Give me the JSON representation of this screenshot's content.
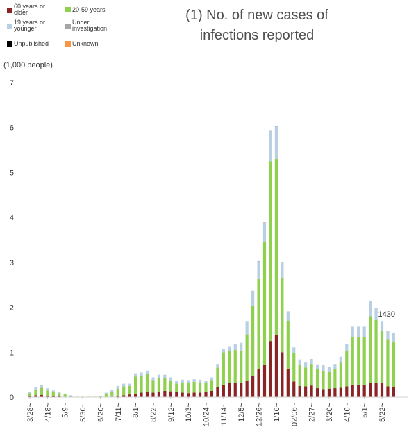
{
  "colors": {
    "older": "#8b2424",
    "adult": "#8fd14f",
    "young": "#b8cfe4",
    "investigation": "#a6a6a6",
    "unpublished": "#000000",
    "unknown": "#f79646"
  },
  "chart_data": {
    "type": "bar",
    "stacked": true,
    "title_lines": [
      "(1) No. of new cases of",
      "infections reported"
    ],
    "unit_label": "(1,000 people)",
    "legend": [
      {
        "key": "older",
        "lines": [
          "60 years or",
          "older"
        ]
      },
      {
        "key": "adult",
        "lines": [
          "20-59 years"
        ]
      },
      {
        "key": "young",
        "lines": [
          "19 years or",
          "younger"
        ]
      },
      {
        "key": "investigation",
        "lines": [
          "Under",
          "investigation"
        ]
      },
      {
        "key": "unpublished",
        "lines": [
          "Unpublished"
        ]
      },
      {
        "key": "unknown",
        "lines": [
          "Unknown"
        ]
      }
    ],
    "ylim": [
      0,
      7
    ],
    "yticks": [
      0,
      1,
      2,
      3,
      4,
      5,
      6,
      7
    ],
    "grid": false,
    "x_tick_labels": [
      {
        "index": 0,
        "label": "3/28~"
      },
      {
        "index": 3,
        "label": "4/18~"
      },
      {
        "index": 6,
        "label": "5/9~"
      },
      {
        "index": 9,
        "label": "5/30~"
      },
      {
        "index": 12,
        "label": "6/20~"
      },
      {
        "index": 15,
        "label": "7/11~"
      },
      {
        "index": 18,
        "label": "8/1~"
      },
      {
        "index": 21,
        "label": "8/22~"
      },
      {
        "index": 24,
        "label": "9/12~"
      },
      {
        "index": 27,
        "label": "10/3~"
      },
      {
        "index": 30,
        "label": "10/24~"
      },
      {
        "index": 33,
        "label": "11/14~"
      },
      {
        "index": 36,
        "label": "12/5~"
      },
      {
        "index": 39,
        "label": "12/26~"
      },
      {
        "index": 42,
        "label": "1/16~"
      },
      {
        "index": 45,
        "label": "02/06~"
      },
      {
        "index": 48,
        "label": "2/27~"
      },
      {
        "index": 51,
        "label": "3/20~"
      },
      {
        "index": 54,
        "label": "4/10~"
      },
      {
        "index": 57,
        "label": "5/1~"
      },
      {
        "index": 60,
        "label": "5/22~"
      }
    ],
    "series": [
      {
        "key": "older",
        "values": [
          0.02,
          0.04,
          0.05,
          0.03,
          0.02,
          0.02,
          0.01,
          0.01,
          0.0,
          0.0,
          0.0,
          0.0,
          0.0,
          0.01,
          0.01,
          0.02,
          0.04,
          0.06,
          0.08,
          0.1,
          0.12,
          0.1,
          0.12,
          0.14,
          0.13,
          0.11,
          0.1,
          0.09,
          0.1,
          0.1,
          0.11,
          0.14,
          0.22,
          0.28,
          0.31,
          0.32,
          0.31,
          0.36,
          0.48,
          0.62,
          0.72,
          1.25,
          1.38,
          1.0,
          0.62,
          0.35,
          0.25,
          0.24,
          0.26,
          0.2,
          0.18,
          0.19,
          0.2,
          0.21,
          0.24,
          0.28,
          0.28,
          0.28,
          0.32,
          0.32,
          0.31,
          0.24,
          0.22
        ]
      },
      {
        "key": "adult",
        "values": [
          0.07,
          0.13,
          0.16,
          0.12,
          0.09,
          0.07,
          0.05,
          0.02,
          0.01,
          0.01,
          0.01,
          0.01,
          0.02,
          0.07,
          0.11,
          0.17,
          0.2,
          0.19,
          0.38,
          0.37,
          0.4,
          0.28,
          0.3,
          0.28,
          0.24,
          0.19,
          0.23,
          0.23,
          0.24,
          0.23,
          0.21,
          0.24,
          0.44,
          0.72,
          0.72,
          0.73,
          0.72,
          1.04,
          1.55,
          2.01,
          2.74,
          4.0,
          3.92,
          1.65,
          1.07,
          0.63,
          0.48,
          0.42,
          0.48,
          0.43,
          0.41,
          0.37,
          0.42,
          0.56,
          0.79,
          1.06,
          1.06,
          1.06,
          1.48,
          1.4,
          1.16,
          1.05,
          1.0
        ]
      },
      {
        "key": "young",
        "values": [
          0.03,
          0.05,
          0.06,
          0.05,
          0.04,
          0.03,
          0.02,
          0.01,
          0.0,
          0.0,
          0.0,
          0.0,
          0.01,
          0.02,
          0.04,
          0.06,
          0.06,
          0.05,
          0.07,
          0.08,
          0.07,
          0.06,
          0.08,
          0.08,
          0.07,
          0.06,
          0.06,
          0.06,
          0.06,
          0.06,
          0.05,
          0.06,
          0.08,
          0.08,
          0.09,
          0.14,
          0.18,
          0.28,
          0.34,
          0.39,
          0.42,
          0.68,
          0.72,
          0.35,
          0.22,
          0.13,
          0.11,
          0.11,
          0.11,
          0.1,
          0.12,
          0.12,
          0.12,
          0.13,
          0.15,
          0.23,
          0.23,
          0.23,
          0.34,
          0.26,
          0.21,
          0.19,
          0.21
        ]
      },
      {
        "key": "investigation",
        "values": [
          0,
          0,
          0,
          0,
          0,
          0,
          0,
          0,
          0,
          0,
          0,
          0,
          0,
          0,
          0,
          0,
          0,
          0,
          0,
          0,
          0,
          0,
          0,
          0,
          0,
          0,
          0,
          0,
          0,
          0,
          0,
          0,
          0,
          0,
          0,
          0,
          0,
          0,
          0,
          0.01,
          0.01,
          0.01,
          0.01,
          0,
          0,
          0,
          0,
          0,
          0,
          0,
          0,
          0,
          0,
          0,
          0,
          0,
          0,
          0,
          0,
          0,
          0,
          0,
          0
        ]
      },
      {
        "key": "unpublished",
        "values": [
          0,
          0,
          0,
          0,
          0,
          0,
          0,
          0,
          0,
          0,
          0,
          0,
          0,
          0,
          0,
          0,
          0,
          0,
          0,
          0,
          0,
          0,
          0,
          0,
          0,
          0,
          0,
          0,
          0,
          0,
          0,
          0,
          0,
          0,
          0,
          0,
          0,
          0,
          0,
          0,
          0,
          0,
          0,
          0,
          0,
          0,
          0,
          0,
          0,
          0,
          0,
          0,
          0,
          0,
          0,
          0,
          0,
          0,
          0,
          0,
          0,
          0,
          0
        ]
      },
      {
        "key": "unknown",
        "values": [
          0,
          0,
          0,
          0,
          0,
          0,
          0,
          0,
          0,
          0,
          0,
          0,
          0,
          0,
          0,
          0,
          0,
          0,
          0,
          0,
          0,
          0,
          0,
          0,
          0,
          0,
          0,
          0,
          0,
          0,
          0,
          0,
          0,
          0,
          0,
          0,
          0,
          0,
          0,
          0,
          0,
          0,
          0,
          0,
          0,
          0,
          0,
          0,
          0,
          0,
          0,
          0,
          0,
          0,
          0,
          0,
          0,
          0,
          0,
          0,
          0,
          0,
          0
        ]
      }
    ],
    "annotation": {
      "index": 59,
      "text": "1430"
    }
  }
}
